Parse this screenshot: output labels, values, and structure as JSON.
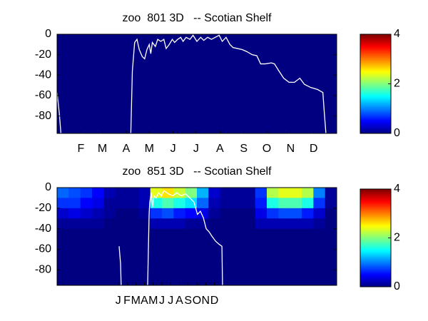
{
  "chart_data": [
    {
      "type": "heatmap",
      "title": "zoo  801 3D   -- Scotian Shelf",
      "colormap": "jet",
      "xlim": [
        0,
        364
      ],
      "ylim": [
        -97,
        0
      ],
      "xticks": [
        {
          "value": 31,
          "label": "F"
        },
        {
          "value": 59,
          "label": "M"
        },
        {
          "value": 90,
          "label": "A"
        },
        {
          "value": 120,
          "label": "M"
        },
        {
          "value": 151,
          "label": "J"
        },
        {
          "value": 181,
          "label": "J"
        },
        {
          "value": 212,
          "label": "A"
        },
        {
          "value": 243,
          "label": "S"
        },
        {
          "value": 273,
          "label": "O"
        },
        {
          "value": 304,
          "label": "N"
        },
        {
          "value": 334,
          "label": "D"
        }
      ],
      "yticks": [
        0,
        -20,
        -40,
        -60,
        -80
      ],
      "clim": [
        0,
        4
      ],
      "cticks": [
        0,
        2,
        4
      ],
      "x_edges": [
        0,
        364
      ],
      "y_edges": [
        0,
        -97
      ],
      "z": [
        [
          0
        ]
      ],
      "series": [
        {
          "color": "#ffffff",
          "x": [
            0,
            3,
            5,
            null,
            96,
            98,
            101,
            104,
            107,
            111,
            114,
            117,
            120,
            122,
            124,
            128,
            131,
            135,
            139,
            142,
            146,
            150,
            153,
            157,
            161,
            164,
            168,
            173,
            177,
            182,
            187,
            191,
            196,
            201,
            206,
            211,
            215,
            220,
            225,
            229,
            235,
            241,
            247,
            254,
            260,
            265,
            271,
            279,
            283,
            288,
            295,
            302,
            309,
            316,
            322,
            330,
            339,
            346,
            348,
            350
          ],
          "values": [
            -57,
            -78,
            -97,
            null,
            -97,
            -36,
            -8,
            -5,
            -15,
            -22,
            -24,
            -15,
            -10,
            -19,
            -8,
            -12,
            -5,
            -7,
            -5,
            -14,
            -10,
            -5,
            -8,
            -5,
            -3,
            -7,
            -3,
            -5,
            -1,
            -7,
            -3,
            -6,
            -3,
            -5,
            -3,
            -1,
            -7,
            -3,
            -10,
            -13,
            -14,
            -15,
            -17,
            -20,
            -21,
            -29,
            -29,
            -28,
            -29,
            -35,
            -43,
            -47,
            -47,
            -43,
            -49,
            -52,
            -54,
            -57,
            -78,
            -97
          ]
        }
      ]
    },
    {
      "type": "heatmap",
      "title": "zoo  851 3D   -- Scotian Shelf",
      "colormap": "jet",
      "xlim": [
        0,
        960
      ],
      "ylim": [
        -95,
        0
      ],
      "xticks": [
        {
          "value": 210,
          "label": "J"
        },
        {
          "value": 240,
          "label": "F"
        },
        {
          "value": 270,
          "label": "M"
        },
        {
          "value": 300,
          "label": "A"
        },
        {
          "value": 330,
          "label": "M"
        },
        {
          "value": 360,
          "label": "J"
        },
        {
          "value": 390,
          "label": "J"
        },
        {
          "value": 420,
          "label": "A"
        },
        {
          "value": 450,
          "label": "S"
        },
        {
          "value": 480,
          "label": "O"
        },
        {
          "value": 510,
          "label": "N"
        },
        {
          "value": 540,
          "label": "D"
        }
      ],
      "yticks": [
        0,
        -20,
        -40,
        -60,
        -80
      ],
      "clim": [
        0,
        4
      ],
      "cticks": [
        0,
        2,
        4
      ],
      "x_edges": [
        0,
        40,
        80,
        120,
        160,
        200,
        240,
        280,
        320,
        360,
        400,
        440,
        480,
        520,
        560,
        600,
        640,
        680,
        720,
        760,
        800,
        840,
        880,
        920,
        960
      ],
      "y_edges": [
        0,
        -10,
        -20,
        -30,
        -40,
        -95
      ],
      "z": [
        [
          0.9,
          0.8,
          0.7,
          0.5,
          0.2,
          0.1,
          0.1,
          0.2,
          2.4,
          2.6,
          2.3,
          2.0,
          1.2,
          0.3,
          0.1,
          0.1,
          0.1,
          0.7,
          2.2,
          2.4,
          2.4,
          2.2,
          1.0,
          0.1
        ],
        [
          0.7,
          0.7,
          0.5,
          0.4,
          0.1,
          0.1,
          0.1,
          0.2,
          1.6,
          1.8,
          1.6,
          1.4,
          0.9,
          0.2,
          0.1,
          0.1,
          0.1,
          0.6,
          1.6,
          1.8,
          1.8,
          1.6,
          0.7,
          0.1
        ],
        [
          0.3,
          0.4,
          0.3,
          0.2,
          0.1,
          0,
          0,
          0.1,
          0.7,
          0.8,
          0.6,
          0.5,
          0.4,
          0.1,
          0,
          0,
          0,
          0.4,
          0.7,
          0.8,
          0.8,
          0.6,
          0.3,
          0
        ],
        [
          0.1,
          0.1,
          0.1,
          0.1,
          0,
          0,
          0,
          0,
          0.2,
          0.2,
          0.2,
          0.1,
          0.1,
          0,
          0,
          0,
          0,
          0.2,
          0.2,
          0.2,
          0.2,
          0.2,
          0.1,
          0
        ],
        [
          0,
          0,
          0,
          0,
          0,
          0,
          0,
          0,
          0,
          0,
          0,
          0,
          0,
          0,
          0,
          0,
          0,
          0,
          0,
          0,
          0,
          0,
          0,
          0
        ]
      ],
      "series": [
        {
          "color": "#ffffff",
          "x": [
            213,
            218,
            220,
            null,
            311,
            316,
            318,
            323,
            328,
            333,
            340,
            348,
            358,
            367,
            382,
            397,
            411,
            426,
            441,
            456,
            470,
            482,
            492,
            502,
            512,
            522,
            531,
            544,
            556,
            566,
            568
          ],
          "values": [
            -57,
            -74,
            -95,
            null,
            -95,
            -26,
            -15,
            -5,
            -19,
            -8,
            -10,
            -5,
            -8,
            -3,
            -6,
            -8,
            -5,
            -8,
            -6,
            -10,
            -14,
            -26,
            -23,
            -29,
            -40,
            -43,
            -47,
            -52,
            -55,
            -57,
            -95
          ]
        }
      ]
    }
  ]
}
